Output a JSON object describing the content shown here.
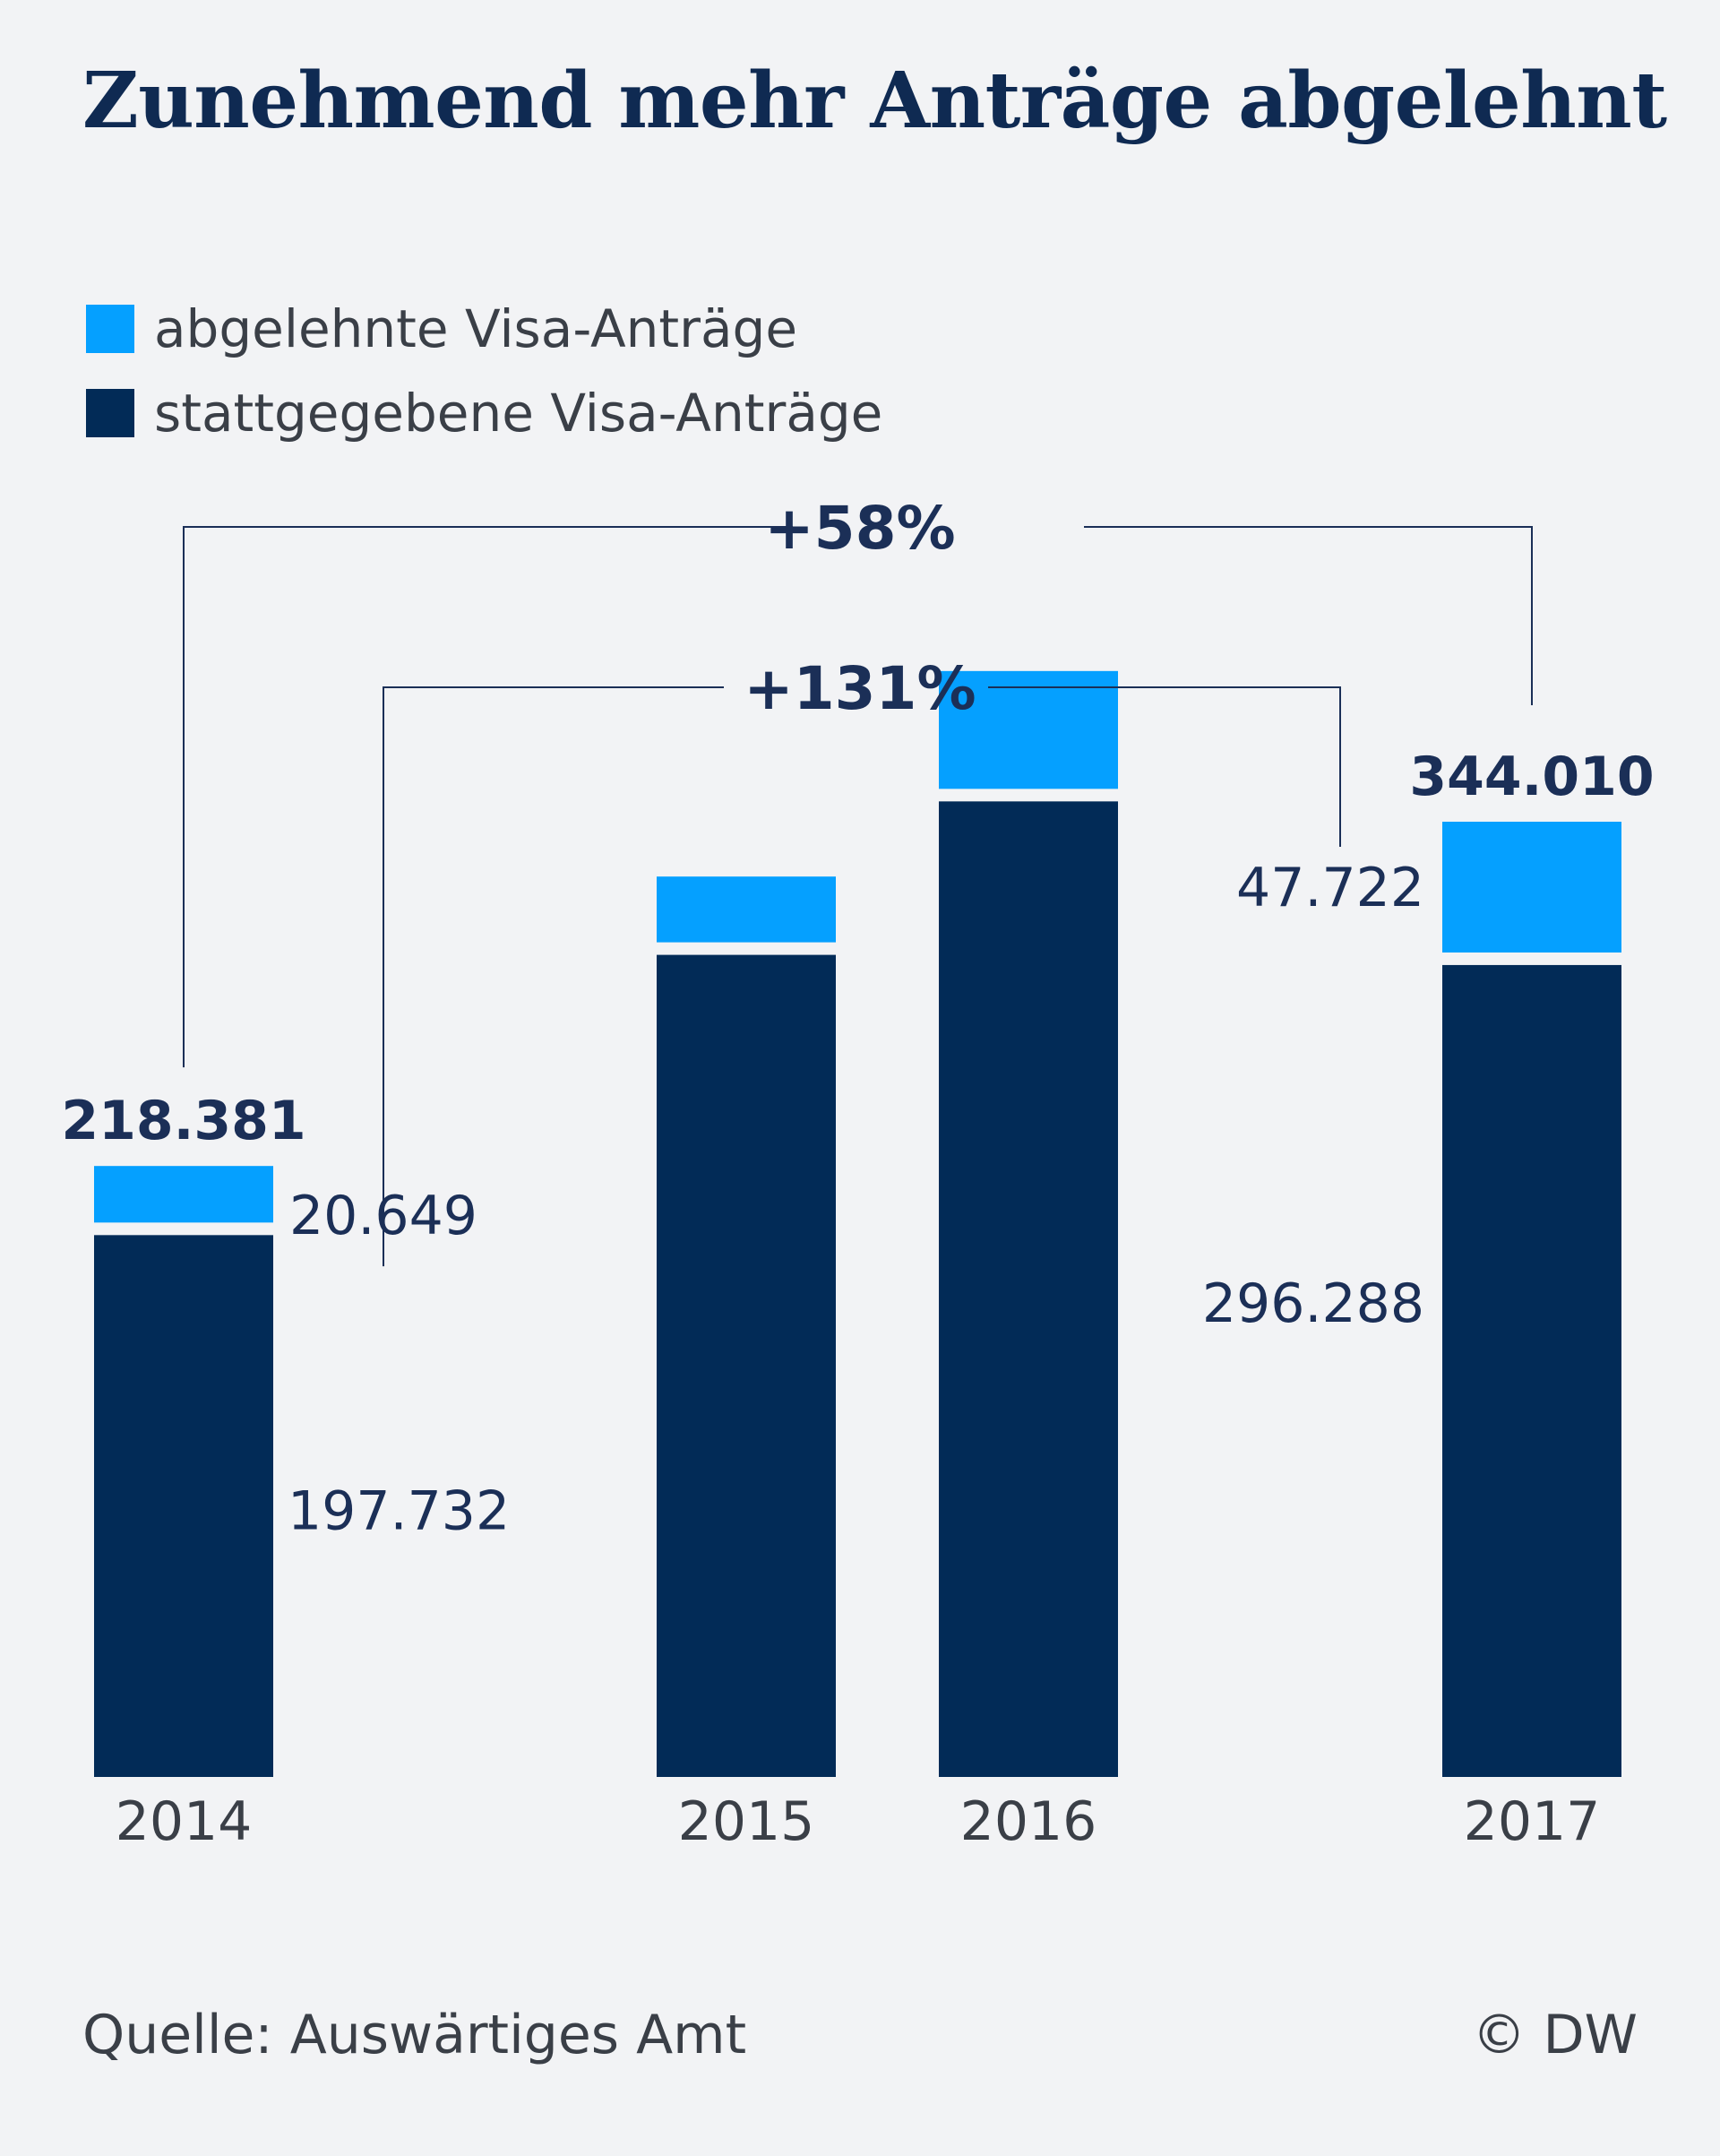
{
  "title": "Zunehmend mehr Anträge abgelehnt",
  "legend": [
    {
      "label": "abgelehnte Visa-Anträge",
      "color": "#05a0ff"
    },
    {
      "label": "stattgegebene Visa-Anträge",
      "color": "#022b57"
    }
  ],
  "chart_data": {
    "type": "bar",
    "stacked": true,
    "categories": [
      "2014",
      "2015",
      "2016",
      "2017"
    ],
    "series": [
      {
        "name": "stattgegebene Visa-Anträge",
        "values": [
          197732,
          300000,
          356000,
          296288
        ],
        "color": "#022b57"
      },
      {
        "name": "abgelehnte Visa-Anträge",
        "values": [
          20649,
          24000,
          43000,
          47722
        ],
        "color": "#05a0ff"
      }
    ],
    "totals": [
      218381,
      324000,
      399000,
      344010
    ],
    "labels": {
      "total_2014": "218.381",
      "rejected_2014": "20.649",
      "approved_2014": "197.732",
      "total_2017": "344.010",
      "rejected_2017": "47.722",
      "approved_2017": "296.288"
    },
    "annotations": [
      {
        "text": "+58%",
        "from": "2014",
        "to": "2017",
        "series": "total"
      },
      {
        "text": "+131%",
        "from": "2014",
        "to": "2017",
        "series": "abgelehnte Visa-Anträge"
      }
    ],
    "ylim": [
      0,
      450000
    ]
  },
  "source": "Quelle: Auswärtiges Amt",
  "credit": "© DW"
}
